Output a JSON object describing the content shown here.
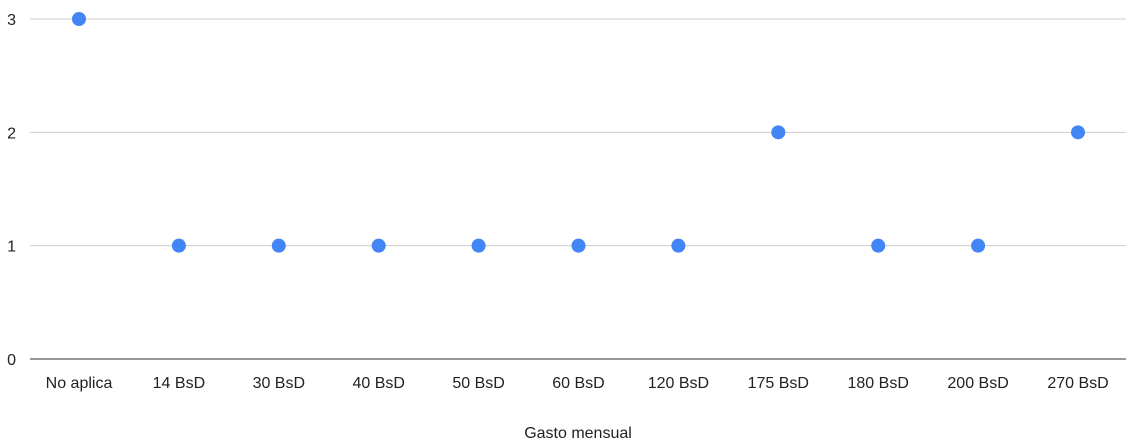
{
  "chart_data": {
    "type": "scatter",
    "categories": [
      "No aplica",
      "14 BsD",
      "30 BsD",
      "40 BsD",
      "50 BsD",
      "60 BsD",
      "120 BsD",
      "175 BsD",
      "180 BsD",
      "200 BsD",
      "270 BsD"
    ],
    "values": [
      3,
      1,
      1,
      1,
      1,
      1,
      1,
      2,
      1,
      1,
      2
    ],
    "title": "",
    "xlabel": "Gasto mensual",
    "ylabel": "",
    "ylim": [
      0,
      3
    ],
    "yticks": [
      "0",
      "1",
      "2",
      "3"
    ],
    "grid": true,
    "point_color": "#4285f4"
  }
}
